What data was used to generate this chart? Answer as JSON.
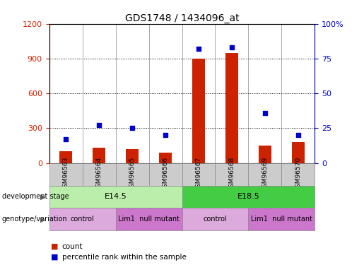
{
  "title": "GDS1748 / 1434096_at",
  "samples": [
    "GSM96563",
    "GSM96564",
    "GSM96565",
    "GSM96566",
    "GSM96567",
    "GSM96568",
    "GSM96569",
    "GSM96570"
  ],
  "counts": [
    100,
    130,
    120,
    90,
    900,
    950,
    150,
    180
  ],
  "percentiles": [
    17,
    27,
    25,
    20,
    82,
    83,
    36,
    20
  ],
  "ylim_left": [
    0,
    1200
  ],
  "ylim_right": [
    0,
    100
  ],
  "yticks_left": [
    0,
    300,
    600,
    900,
    1200
  ],
  "yticks_right": [
    0,
    25,
    50,
    75,
    100
  ],
  "ytick_right_labels": [
    "0",
    "25",
    "50",
    "75",
    "100%"
  ],
  "bar_color": "#cc2200",
  "dot_color": "#0000cc",
  "dev_stages": [
    {
      "label": "E14.5",
      "start": 0,
      "end": 4,
      "color": "#bbeeaa"
    },
    {
      "label": "E18.5",
      "start": 4,
      "end": 8,
      "color": "#44cc44"
    }
  ],
  "genotypes": [
    {
      "label": "control",
      "start": 0,
      "end": 2,
      "color": "#ddaadd"
    },
    {
      "label": "Lim1  null mutant",
      "start": 2,
      "end": 4,
      "color": "#cc77cc"
    },
    {
      "label": "control",
      "start": 4,
      "end": 6,
      "color": "#ddaadd"
    },
    {
      "label": "Lim1  null mutant",
      "start": 6,
      "end": 8,
      "color": "#cc77cc"
    }
  ],
  "left_axis_color": "#cc2200",
  "right_axis_color": "#0000cc",
  "grid_color": "#000000",
  "sample_box_color": "#cccccc",
  "row_label_dev": "development stage",
  "row_label_gen": "genotype/variation",
  "legend_count": "count",
  "legend_pct": "percentile rank within the sample"
}
